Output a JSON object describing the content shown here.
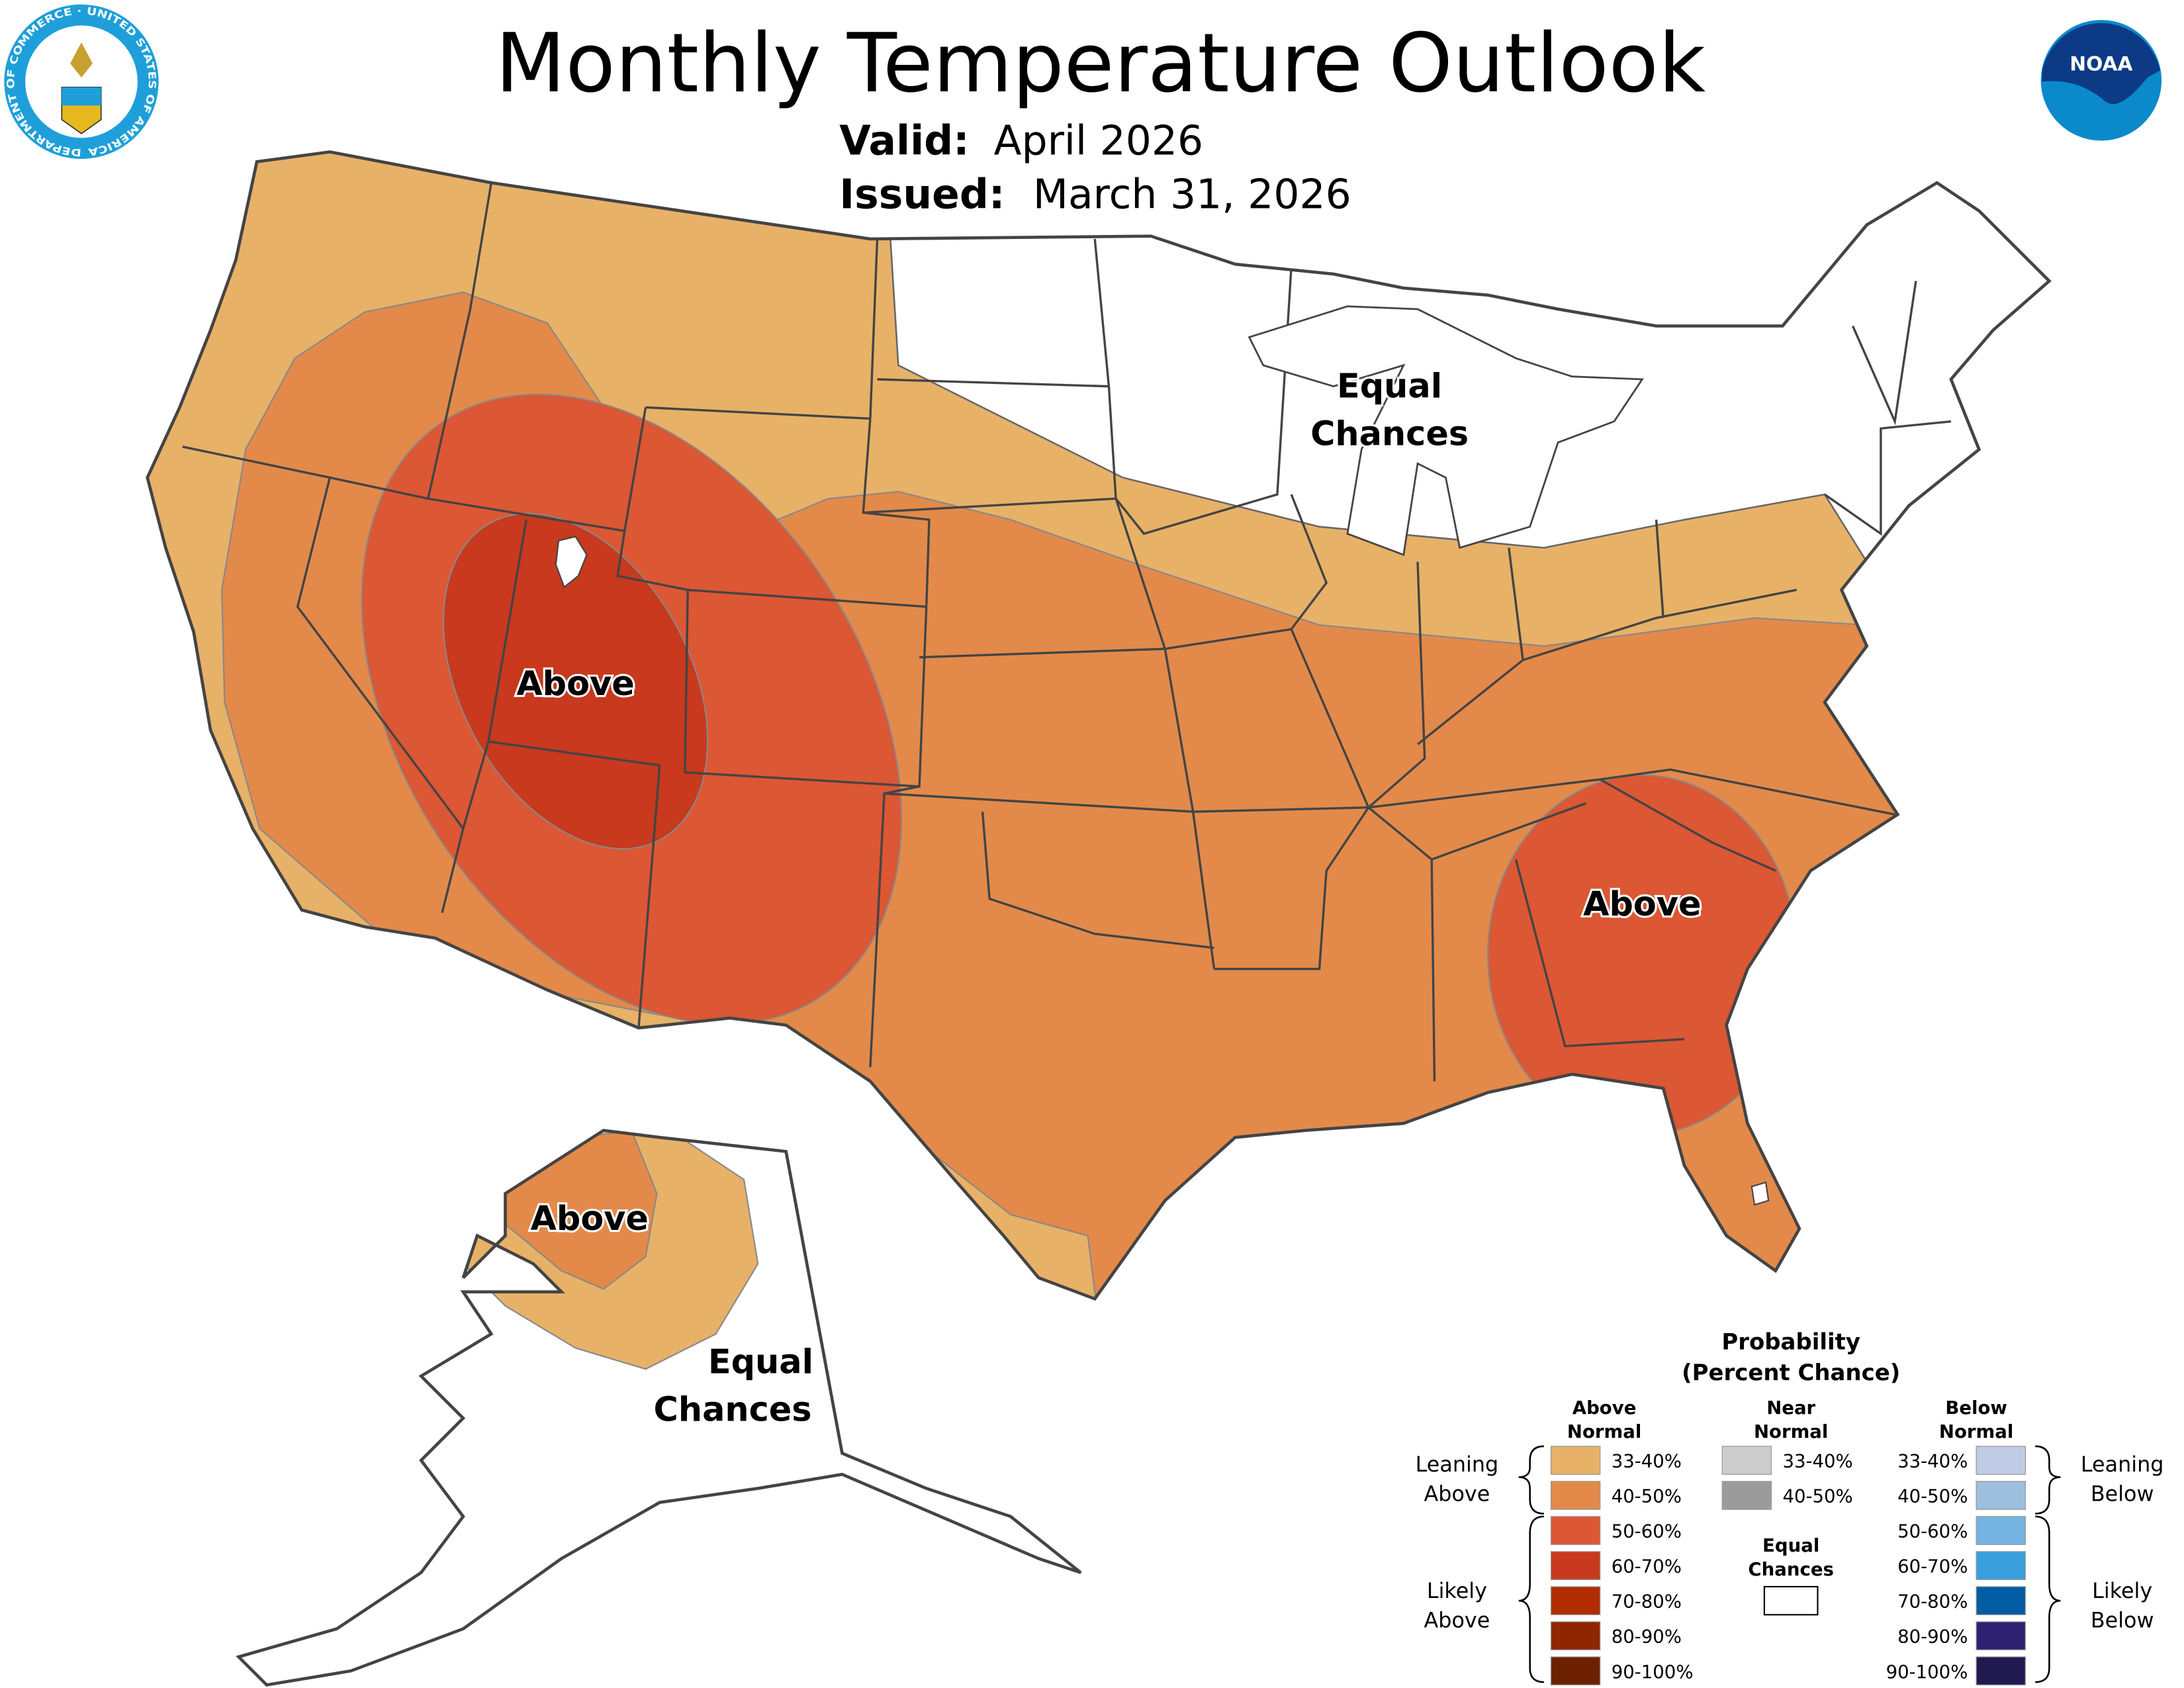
{
  "header": {
    "title": "Monthly Temperature Outlook",
    "valid_label": "Valid:",
    "valid_value": "April 2026",
    "issued_label": "Issued:",
    "issued_value": "March 31, 2026",
    "left_logo": "department-of-commerce-seal",
    "left_logo_text": "DEPARTMENT OF COMMERCE · UNITED STATES OF AMERICA",
    "right_logo": "noaa-logo",
    "right_logo_text": "NOAA"
  },
  "map": {
    "labels": {
      "west_above": "Above",
      "southeast_above": "Above",
      "alaska_above": "Above",
      "conus_equal_1": "Equal",
      "conus_equal_2": "Chances",
      "alaska_equal_1": "Equal",
      "alaska_equal_2": "Chances"
    },
    "regions": [
      {
        "area": "Northern Rockies / Plains / Ohio Valley / Mid-Atlantic / Pacific coast",
        "category": "Above Normal",
        "probability": "33-40%"
      },
      {
        "area": "Southwest, South, Southeast",
        "category": "Above Normal",
        "probability": "40-50%"
      },
      {
        "area": "Great Basin / Four Corners",
        "category": "Above Normal",
        "probability": "50-60%"
      },
      {
        "area": "Utah / Nevada core",
        "category": "Above Normal",
        "probability": "60-70%"
      },
      {
        "area": "Georgia / South Carolina",
        "category": "Above Normal",
        "probability": "50-60%"
      },
      {
        "area": "Upper Midwest / Great Lakes / Northeast",
        "category": "Equal Chances",
        "probability": ""
      },
      {
        "area": "Western Alaska",
        "category": "Above Normal",
        "probability": "40-50%"
      },
      {
        "area": "Interior Alaska",
        "category": "Above Normal",
        "probability": "33-40%"
      },
      {
        "area": "Rest of Alaska",
        "category": "Equal Chances",
        "probability": ""
      }
    ]
  },
  "legend": {
    "title_1": "Probability",
    "title_2": "(Percent Chance)",
    "above_header_1": "Above",
    "above_header_2": "Normal",
    "near_header_1": "Near",
    "near_header_2": "Normal",
    "below_header_1": "Below",
    "below_header_2": "Normal",
    "leaning_above_1": "Leaning",
    "leaning_above_2": "Above",
    "likely_above_1": "Likely",
    "likely_above_2": "Above",
    "leaning_below_1": "Leaning",
    "leaning_below_2": "Below",
    "likely_below_1": "Likely",
    "likely_below_2": "Below",
    "equal_1": "Equal",
    "equal_2": "Chances",
    "above": [
      {
        "range": "33-40%",
        "color": "#E8B168"
      },
      {
        "range": "40-50%",
        "color": "#E38A4A"
      },
      {
        "range": "50-60%",
        "color": "#DC5733"
      },
      {
        "range": "60-70%",
        "color": "#C8391D"
      },
      {
        "range": "70-80%",
        "color": "#B12C00"
      },
      {
        "range": "80-90%",
        "color": "#8E2600"
      },
      {
        "range": "90-100%",
        "color": "#6E2100"
      }
    ],
    "near": [
      {
        "range": "33-40%",
        "color": "#CCCCCC"
      },
      {
        "range": "40-50%",
        "color": "#9B9B9B"
      }
    ],
    "below": [
      {
        "range": "33-40%",
        "color": "#C0CCE5"
      },
      {
        "range": "40-50%",
        "color": "#9FBFDF"
      },
      {
        "range": "50-60%",
        "color": "#75B3E1"
      },
      {
        "range": "60-70%",
        "color": "#3A9FDD"
      },
      {
        "range": "70-80%",
        "color": "#005DA3"
      },
      {
        "range": "80-90%",
        "color": "#2E2070"
      },
      {
        "range": "90-100%",
        "color": "#201A50"
      }
    ],
    "equal_color": "#FFFFFF"
  }
}
